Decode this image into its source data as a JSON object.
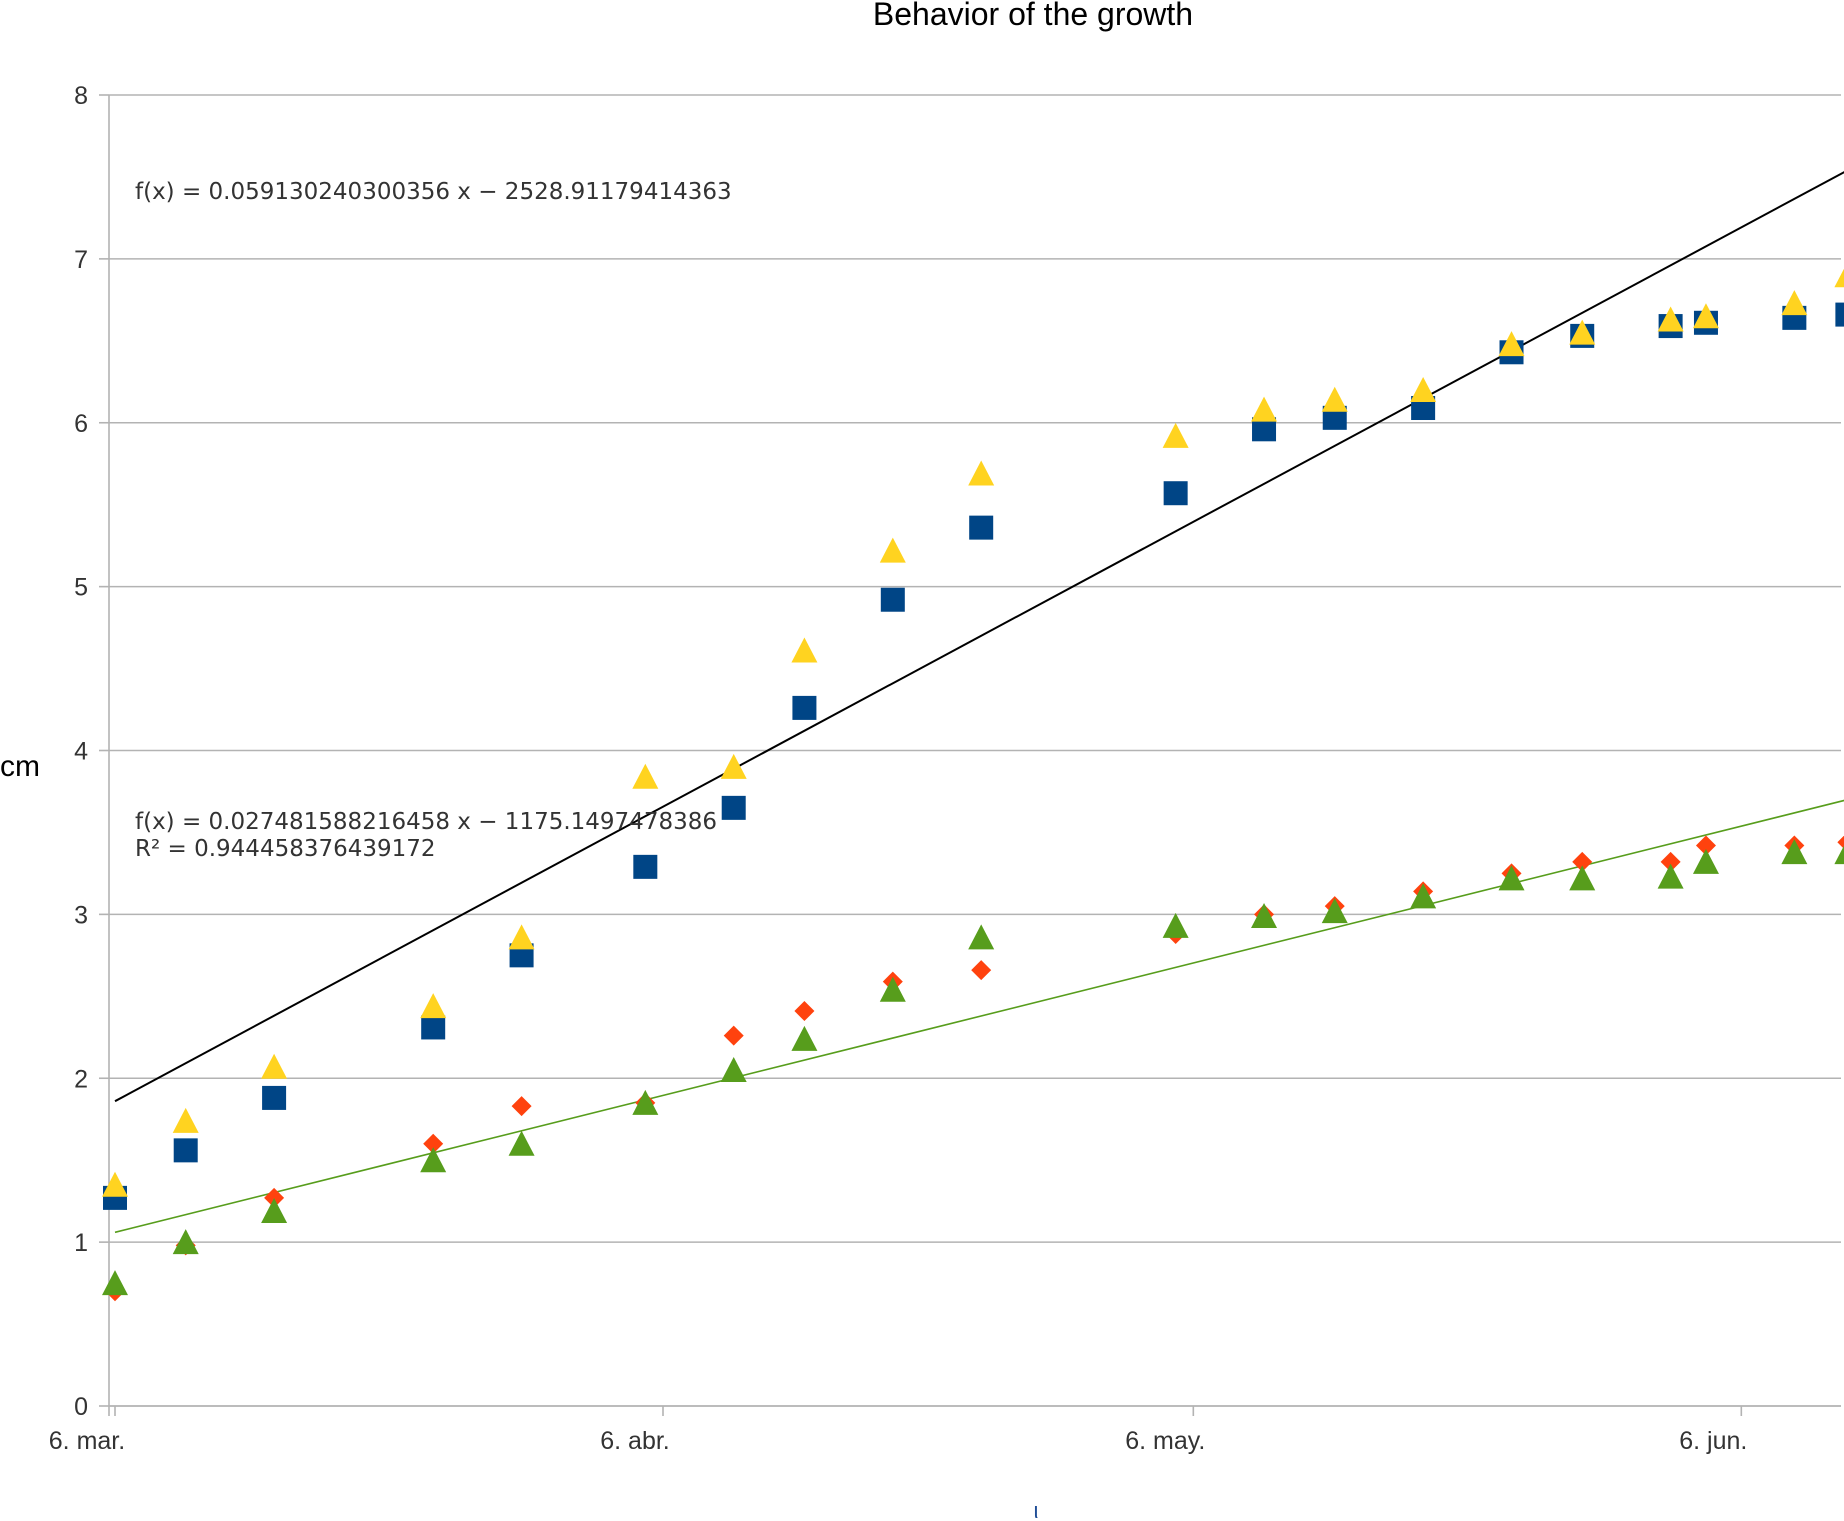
{
  "chart_data": {
    "type": "scatter",
    "title": "Behavior of the growth",
    "ylabel": "cm",
    "xlabel": "ι",
    "ylim": [
      0,
      8
    ],
    "yticks": [
      "0",
      "1",
      "2",
      "3",
      "4",
      "5",
      "6",
      "7",
      "8"
    ],
    "xlim": [
      "2018-03-06",
      "2018-06-11"
    ],
    "xticks": [
      {
        "date": "2018-03-06",
        "label": "6. mar."
      },
      {
        "date": "2018-04-06",
        "label": "6. abr."
      },
      {
        "date": "2018-05-06",
        "label": "6. may."
      },
      {
        "date": "2018-06-06",
        "label": "6. jun."
      }
    ],
    "grid": "horizontal",
    "legend": "none",
    "x": [
      "2018-03-06",
      "2018-03-10",
      "2018-03-15",
      "2018-03-24",
      "2018-03-29",
      "2018-04-05",
      "2018-04-10",
      "2018-04-14",
      "2018-04-19",
      "2018-04-24",
      "2018-05-05",
      "2018-05-10",
      "2018-05-14",
      "2018-05-19",
      "2018-05-24",
      "2018-05-28",
      "2018-06-02",
      "2018-06-04",
      "2018-06-09",
      "2018-06-12"
    ],
    "series": [
      {
        "marker": "square",
        "color": "#004586",
        "values": [
          1.27,
          1.56,
          1.88,
          2.31,
          2.75,
          3.29,
          3.65,
          4.26,
          4.92,
          5.36,
          5.57,
          5.96,
          6.03,
          6.09,
          6.43,
          6.53,
          6.59,
          6.61,
          6.64,
          6.66
        ]
      },
      {
        "marker": "triangle",
        "color": "#ffd320",
        "values": [
          1.35,
          1.74,
          2.07,
          2.44,
          2.86,
          3.84,
          3.9,
          4.61,
          5.22,
          5.69,
          5.92,
          6.08,
          6.14,
          6.2,
          6.48,
          6.55,
          6.63,
          6.65,
          6.73,
          6.9
        ]
      },
      {
        "marker": "diamond",
        "color": "#ff420e",
        "values": [
          0.7,
          0.98,
          1.27,
          1.6,
          1.83,
          1.85,
          2.26,
          2.41,
          2.59,
          2.66,
          2.88,
          3.0,
          3.05,
          3.14,
          3.25,
          3.32,
          3.32,
          3.42,
          3.42,
          3.44
        ]
      },
      {
        "marker": "triangle",
        "color": "#579d1c",
        "values": [
          0.75,
          1.0,
          1.19,
          1.5,
          1.6,
          1.85,
          2.05,
          2.24,
          2.54,
          2.86,
          2.93,
          2.99,
          3.02,
          3.11,
          3.22,
          3.22,
          3.23,
          3.32,
          3.38,
          3.38
        ]
      }
    ],
    "trendlines": [
      {
        "color": "#000000",
        "label": "f(x) = 0.05913024030​0356 x − 2528.91179414363",
        "from": [
          "2018-03-06",
          1.86
        ],
        "to": [
          "2018-06-12",
          7.54
        ]
      },
      {
        "color": "#579d1c",
        "label": "f(x) = 0.027481588216458 x − 1175.1497478386",
        "r2_label": "R² = 0.944458376439172",
        "from": [
          "2018-03-06",
          1.06
        ],
        "to": [
          "2018-06-12",
          3.7
        ]
      }
    ]
  }
}
